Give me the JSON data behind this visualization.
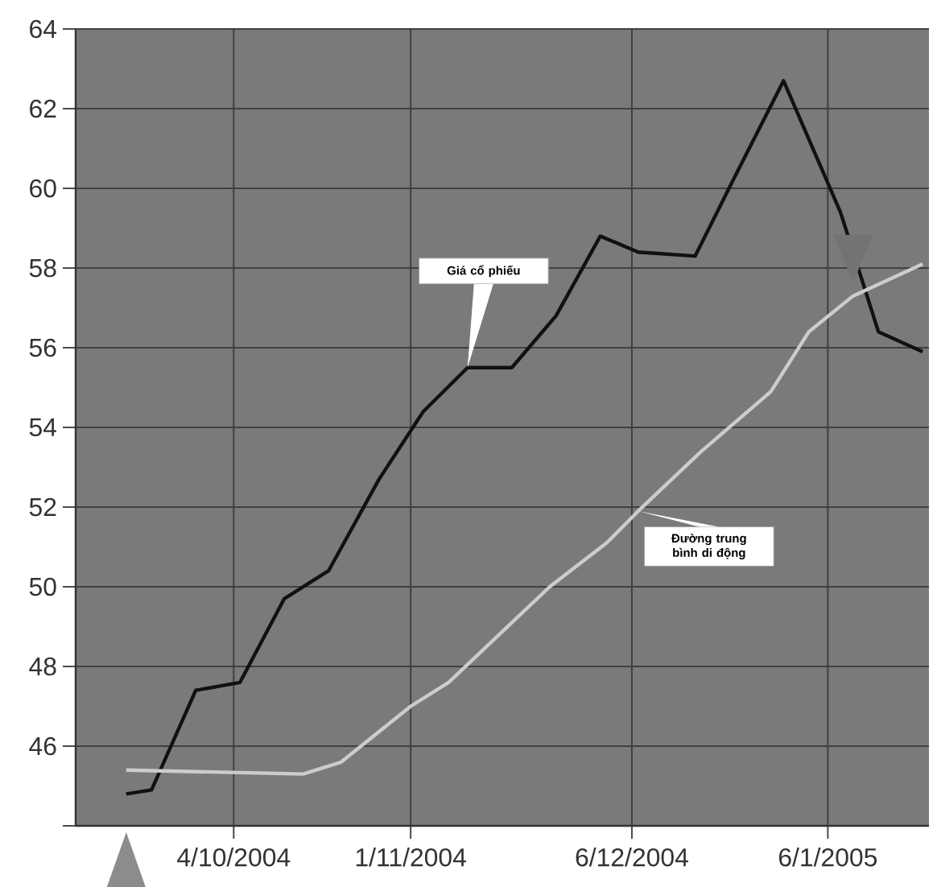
{
  "chart_data": {
    "type": "line",
    "xlim": [
      "2004-09-09",
      "2005-01-22"
    ],
    "ylim": [
      44,
      64
    ],
    "xticks": [
      {
        "value": "2004-10-04",
        "label": "4/10/2004"
      },
      {
        "value": "2004-11-01",
        "label": "1/11/2004"
      },
      {
        "value": "2004-12-06",
        "label": "6/12/2004"
      },
      {
        "value": "2005-01-06",
        "label": "6/1/2005"
      }
    ],
    "yticks": [
      {
        "value": 44,
        "label": null
      },
      46,
      48,
      50,
      52,
      54,
      56,
      58,
      60,
      62,
      64
    ],
    "grid": true,
    "series": [
      {
        "name": "Giá cổ phiếu",
        "color": "#111111",
        "x": [
          "2004-09-17",
          "2004-09-21",
          "2004-09-28",
          "2004-10-05",
          "2004-10-12",
          "2004-10-19",
          "2004-10-27",
          "2004-11-03",
          "2004-11-10",
          "2004-11-17",
          "2004-11-24",
          "2004-12-01",
          "2004-12-07",
          "2004-12-16",
          "2004-12-22",
          "2004-12-30",
          "2005-01-08",
          "2005-01-14",
          "2005-01-21"
        ],
        "values": [
          44.8,
          44.9,
          47.4,
          47.6,
          49.7,
          50.4,
          52.7,
          54.4,
          55.5,
          55.5,
          56.8,
          58.8,
          58.4,
          58.3,
          60.2,
          62.7,
          59.4,
          56.4,
          55.9
        ]
      },
      {
        "name": "Đường trung bình di động",
        "color": "#cccccc",
        "x": [
          "2004-09-17",
          "2004-10-15",
          "2004-10-21",
          "2004-11-01",
          "2004-11-07",
          "2004-11-23",
          "2004-12-02",
          "2004-12-07",
          "2004-12-17",
          "2004-12-28",
          "2005-01-03",
          "2005-01-10",
          "2005-01-21"
        ],
        "values": [
          45.4,
          45.3,
          45.6,
          47.0,
          47.6,
          50.0,
          51.1,
          51.9,
          53.4,
          54.9,
          56.4,
          57.3,
          58.1
        ]
      }
    ]
  }
}
